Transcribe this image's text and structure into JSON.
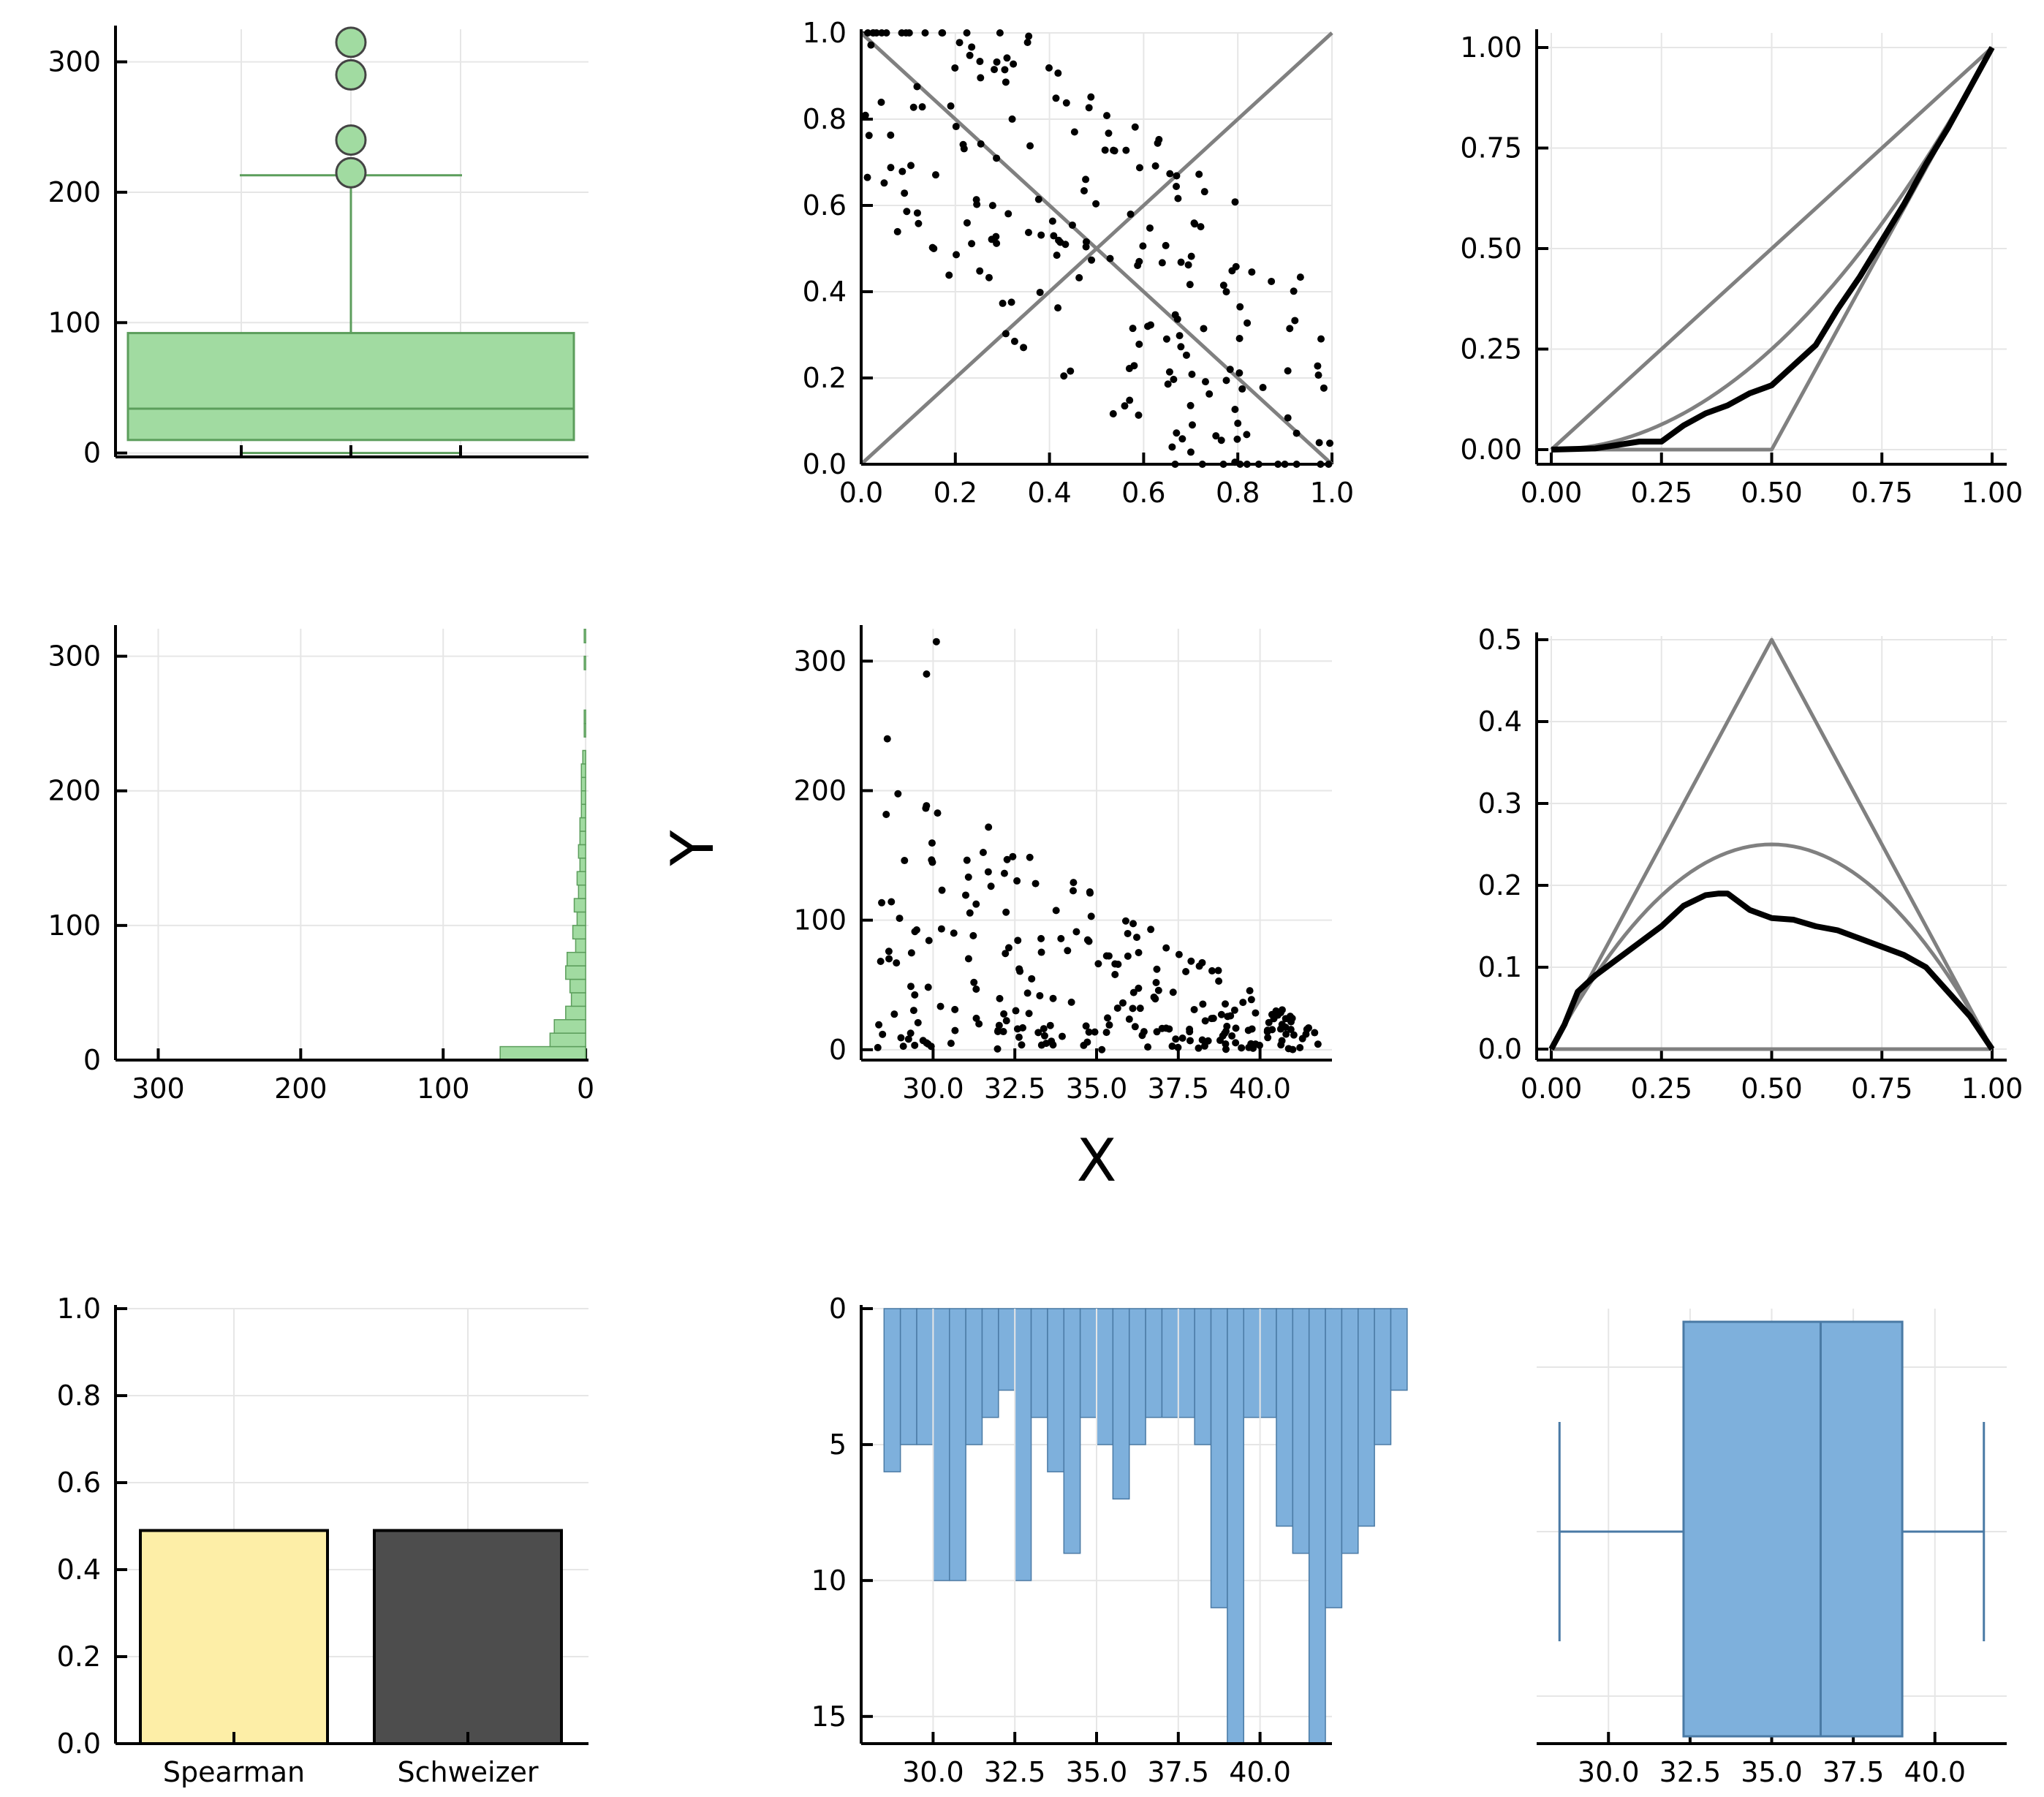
{
  "labels": {
    "x_label": "X",
    "y_label": "Y"
  },
  "colors": {
    "green_fill": "#a1dba1",
    "green_line": "#5c9e5c",
    "blue_fill": "#7eb0dc",
    "blue_line": "#4a7aa5",
    "yellow": "#fdeea7",
    "dark": "#4d4d4d",
    "ref_line": "#808080",
    "grid": "#e6e6e6"
  },
  "chart_data": [
    {
      "id": "y-boxplot",
      "type": "box",
      "orientation": "vertical",
      "yticks": [
        0,
        100,
        200,
        300
      ],
      "ylim": [
        -3,
        325
      ],
      "box": {
        "lower_whisker": 0,
        "q1": 10,
        "median": 34,
        "q3": 92,
        "upper_whisker": 213
      },
      "outliers": [
        215,
        240,
        290,
        315
      ]
    },
    {
      "id": "copula-scatter",
      "type": "scatter",
      "xlim": [
        0,
        1
      ],
      "ylim": [
        0,
        1
      ],
      "xticks": [
        "0.0",
        "0.2",
        "0.4",
        "0.6",
        "0.8",
        "1.0"
      ],
      "yticks": [
        "0.0",
        "0.2",
        "0.4",
        "0.6",
        "0.8",
        "1.0"
      ],
      "reference_lines": [
        "diagonal",
        "anti-diagonal"
      ],
      "n_points": 210
    },
    {
      "id": "kendall-function",
      "type": "line",
      "xlim": [
        0,
        1
      ],
      "ylim": [
        0,
        1
      ],
      "xticks": [
        "0.00",
        "0.25",
        "0.50",
        "0.75",
        "1.00"
      ],
      "yticks": [
        "0.00",
        "0.25",
        "0.50",
        "0.75",
        "1.00"
      ],
      "reference_curves": [
        "t",
        "t^2",
        "max(0, 2t-1)"
      ],
      "empirical": [
        [
          0,
          0
        ],
        [
          0.1,
          0.003
        ],
        [
          0.2,
          0.02
        ],
        [
          0.25,
          0.02
        ],
        [
          0.3,
          0.06
        ],
        [
          0.35,
          0.09
        ],
        [
          0.4,
          0.11
        ],
        [
          0.45,
          0.14
        ],
        [
          0.5,
          0.16
        ],
        [
          0.55,
          0.21
        ],
        [
          0.6,
          0.26
        ],
        [
          0.65,
          0.35
        ],
        [
          0.7,
          0.43
        ],
        [
          0.75,
          0.52
        ],
        [
          0.8,
          0.61
        ],
        [
          0.85,
          0.71
        ],
        [
          0.9,
          0.8
        ],
        [
          0.95,
          0.9
        ],
        [
          1,
          1
        ]
      ]
    },
    {
      "id": "y-histogram",
      "type": "bar",
      "orientation": "horizontal",
      "bin_width": 10,
      "xlim": [
        330,
        -2
      ],
      "ylim": [
        0,
        315
      ],
      "xticks": [
        300,
        200,
        100,
        0
      ],
      "yticks": [
        0,
        100,
        200,
        300
      ],
      "counts": [
        60,
        25,
        22,
        14,
        10,
        11,
        14,
        13,
        7,
        9,
        6,
        8,
        5,
        6,
        4,
        5,
        4,
        4,
        3,
        3,
        3,
        3,
        2,
        0,
        1,
        1,
        0,
        0,
        0,
        1,
        0,
        1
      ]
    },
    {
      "id": "xy-scatter",
      "type": "scatter",
      "xlim": [
        27.8,
        42.2
      ],
      "ylim": [
        -8,
        325
      ],
      "xticks": [
        "30.0",
        "32.5",
        "35.0",
        "37.5",
        "40.0"
      ],
      "yticks": [
        "0",
        "100",
        "200",
        "300"
      ],
      "xlabel": "X",
      "ylabel": "Y",
      "n_points": 240
    },
    {
      "id": "extreme-function",
      "type": "line",
      "xlim": [
        0,
        1
      ],
      "ylim": [
        0,
        0.5
      ],
      "xticks": [
        "0.00",
        "0.25",
        "0.50",
        "0.75",
        "1.00"
      ],
      "yticks": [
        "0.0",
        "0.1",
        "0.2",
        "0.3",
        "0.4",
        "0.5"
      ],
      "reference_curves": [
        "min(t, 1-t)",
        "t(1-t)",
        "0"
      ],
      "empirical": [
        [
          0,
          0
        ],
        [
          0.03,
          0.03
        ],
        [
          0.06,
          0.07
        ],
        [
          0.1,
          0.09
        ],
        [
          0.15,
          0.11
        ],
        [
          0.2,
          0.13
        ],
        [
          0.25,
          0.15
        ],
        [
          0.3,
          0.175
        ],
        [
          0.35,
          0.188
        ],
        [
          0.38,
          0.19
        ],
        [
          0.4,
          0.19
        ],
        [
          0.45,
          0.17
        ],
        [
          0.5,
          0.16
        ],
        [
          0.55,
          0.158
        ],
        [
          0.6,
          0.15
        ],
        [
          0.65,
          0.145
        ],
        [
          0.7,
          0.135
        ],
        [
          0.75,
          0.125
        ],
        [
          0.8,
          0.115
        ],
        [
          0.85,
          0.1
        ],
        [
          0.9,
          0.07
        ],
        [
          0.95,
          0.04
        ],
        [
          1,
          0
        ]
      ]
    },
    {
      "id": "dependence-bars",
      "type": "bar",
      "categories": [
        "Spearman",
        "Schweizer"
      ],
      "values": [
        0.49,
        0.49
      ],
      "ylim": [
        0,
        1
      ],
      "yticks": [
        "0.0",
        "0.2",
        "0.4",
        "0.6",
        "0.8",
        "1.0"
      ]
    },
    {
      "id": "x-histogram",
      "type": "bar",
      "orientation": "downward",
      "bin_width": 0.5,
      "x_start": 28.5,
      "xlim": [
        27.8,
        42.2
      ],
      "ylim": [
        0,
        16
      ],
      "xticks": [
        "30.0",
        "32.5",
        "35.0",
        "37.5",
        "40.0"
      ],
      "yticks": [
        "0",
        "5",
        "10",
        "15"
      ],
      "counts": [
        6,
        5,
        5,
        10,
        10,
        5,
        4,
        3,
        10,
        4,
        6,
        9,
        4,
        5,
        7,
        5,
        4,
        4,
        4,
        5,
        11,
        16,
        4,
        4,
        8,
        9,
        16,
        11,
        9,
        8,
        5,
        3
      ]
    },
    {
      "id": "x-boxplot",
      "type": "box",
      "orientation": "horizontal",
      "xlim": [
        27.8,
        42.2
      ],
      "xticks": [
        "30.0",
        "32.5",
        "35.0",
        "37.5",
        "40.0"
      ],
      "box": {
        "lower_whisker": 28.5,
        "q1": 32.3,
        "median": 36.5,
        "q3": 39.0,
        "upper_whisker": 41.5
      }
    }
  ]
}
